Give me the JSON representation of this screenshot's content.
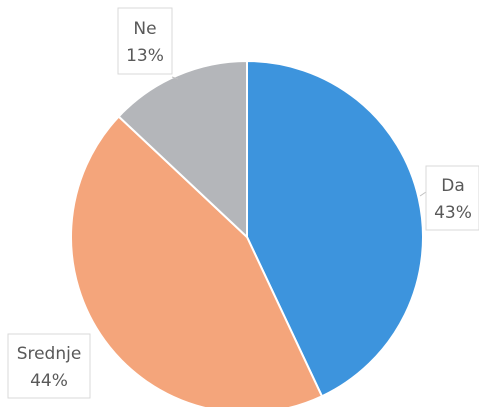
{
  "chart_data": {
    "type": "pie",
    "categories": [
      "Da",
      "Srednje",
      "Ne"
    ],
    "values": [
      43,
      44,
      13
    ],
    "value_labels": [
      "43%",
      "44%",
      "13%"
    ],
    "colors": {
      "Da": "#3d94dd",
      "Srednje": "#f4a57b",
      "Ne": "#b4b6ba"
    },
    "start_angle": "12 o'clock",
    "direction": "clockwise",
    "legend": "none"
  }
}
